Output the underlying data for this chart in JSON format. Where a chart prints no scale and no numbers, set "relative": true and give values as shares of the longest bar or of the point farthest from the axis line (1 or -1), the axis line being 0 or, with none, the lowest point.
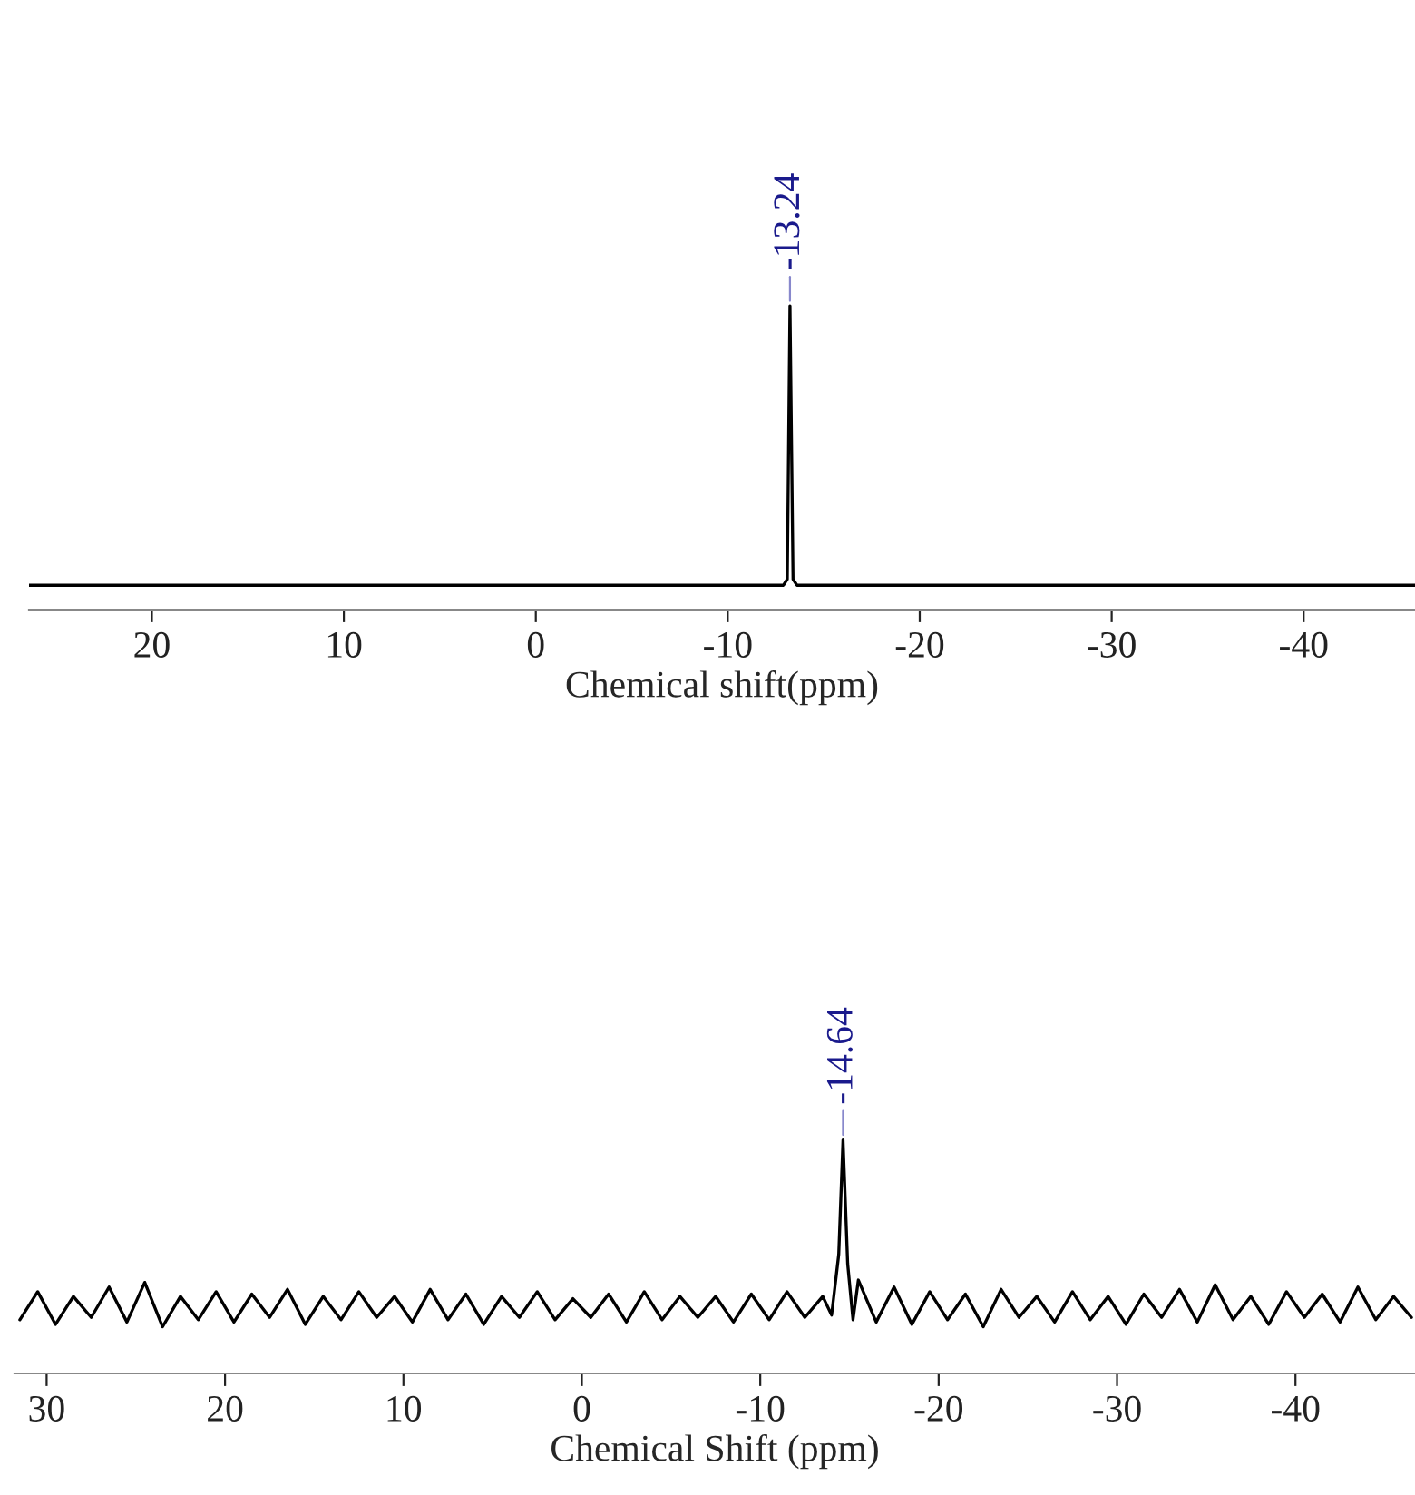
{
  "chart_data": [
    {
      "type": "line",
      "relative": true,
      "xlabel": "Chemical shift(ppm)",
      "xlim": [
        26.4,
        -45.8
      ],
      "xticks": [
        20,
        10,
        0,
        -10,
        -20,
        -30,
        -40
      ],
      "grid": false,
      "legend": false,
      "marker": "none",
      "line_style": "solid",
      "tick_labels": "x",
      "series": [
        {
          "color": "#000000",
          "x": [
            26.4,
            -12.9,
            -13.1,
            -13.24,
            -13.4,
            -13.6,
            -45.8
          ],
          "values": [
            0.08,
            0.08,
            0.1,
            1,
            0.1,
            0.08,
            0.08
          ]
        }
      ],
      "annotations": [
        {
          "text": "-13.24",
          "x": -13.24,
          "y": 1
        }
      ]
    },
    {
      "type": "line",
      "relative": true,
      "xlabel": "Chemical Shift (ppm)",
      "xlim": [
        31.8,
        -46.7
      ],
      "xticks": [
        30,
        20,
        10,
        0,
        -10,
        -20,
        -30,
        -40
      ],
      "grid": false,
      "legend": false,
      "marker": "none",
      "line_style": "solid",
      "tick_labels": "x",
      "series": [
        {
          "color": "#000000",
          "x": [
            31.5,
            30.5,
            29.5,
            28.5,
            27.5,
            26.5,
            25.5,
            24.5,
            23.5,
            22.5,
            21.5,
            20.5,
            19.5,
            18.5,
            17.5,
            16.5,
            15.5,
            14.5,
            13.5,
            12.5,
            11.5,
            10.5,
            9.5,
            8.5,
            7.5,
            6.5,
            5.5,
            4.5,
            3.5,
            2.5,
            1.5,
            0.5,
            -0.5,
            -1.5,
            -2.5,
            -3.5,
            -4.5,
            -5.5,
            -6.5,
            -7.5,
            -8.5,
            -9.5,
            -10.5,
            -11.5,
            -12.5,
            -13.5,
            -14.0,
            -14.4,
            -14.64,
            -14.9,
            -15.2,
            -15.5,
            -16.5,
            -17.5,
            -18.5,
            -19.5,
            -20.5,
            -21.5,
            -22.5,
            -23.5,
            -24.5,
            -25.5,
            -26.5,
            -27.5,
            -28.5,
            -29.5,
            -30.5,
            -31.5,
            -32.5,
            -33.5,
            -34.5,
            -35.5,
            -36.5,
            -37.5,
            -38.5,
            -39.5,
            -40.5,
            -41.5,
            -42.5,
            -43.5,
            -44.5,
            -45.5,
            -46.5
          ],
          "values": [
            0.23,
            0.35,
            0.21,
            0.33,
            0.24,
            0.37,
            0.22,
            0.39,
            0.2,
            0.33,
            0.23,
            0.35,
            0.22,
            0.34,
            0.24,
            0.36,
            0.21,
            0.33,
            0.23,
            0.35,
            0.24,
            0.33,
            0.22,
            0.36,
            0.23,
            0.34,
            0.21,
            0.33,
            0.24,
            0.35,
            0.23,
            0.32,
            0.24,
            0.34,
            0.22,
            0.35,
            0.23,
            0.33,
            0.24,
            0.33,
            0.22,
            0.34,
            0.23,
            0.35,
            0.24,
            0.33,
            0.25,
            0.51,
            1,
            0.47,
            0.23,
            0.4,
            0.22,
            0.37,
            0.21,
            0.35,
            0.23,
            0.34,
            0.2,
            0.36,
            0.24,
            0.33,
            0.22,
            0.35,
            0.23,
            0.33,
            0.21,
            0.34,
            0.24,
            0.36,
            0.22,
            0.38,
            0.23,
            0.33,
            0.21,
            0.35,
            0.24,
            0.34,
            0.22,
            0.37,
            0.23,
            0.33,
            0.24
          ]
        }
      ],
      "annotations": [
        {
          "text": "-14.64",
          "x": -14.64,
          "y": 1
        }
      ]
    }
  ]
}
